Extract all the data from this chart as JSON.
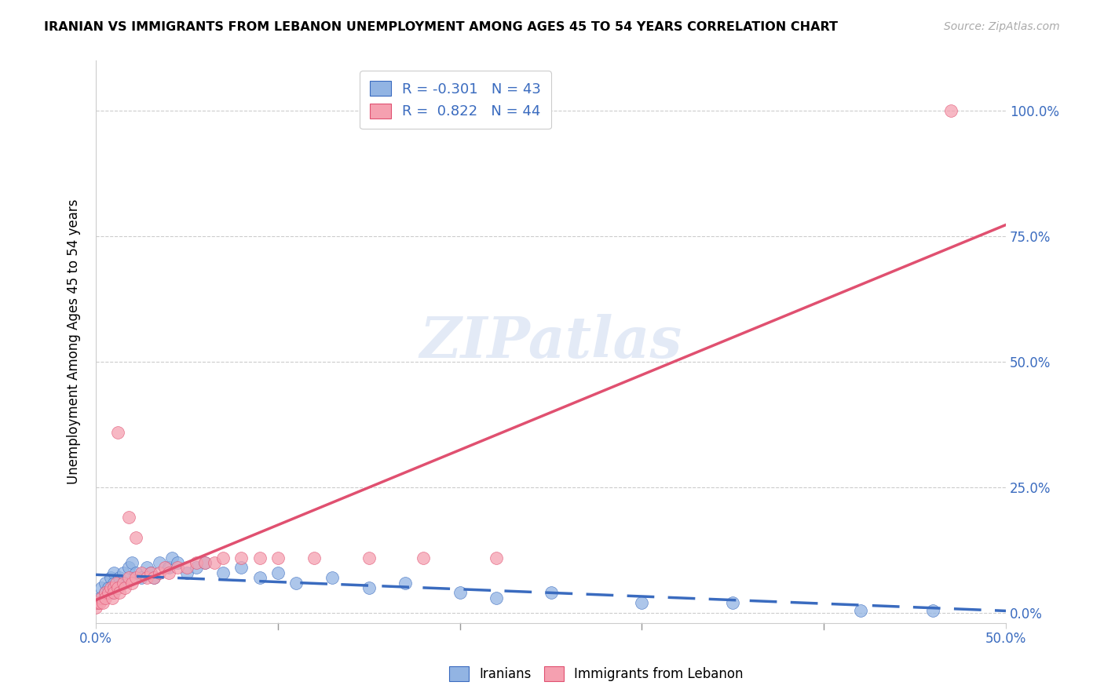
{
  "title": "IRANIAN VS IMMIGRANTS FROM LEBANON UNEMPLOYMENT AMONG AGES 45 TO 54 YEARS CORRELATION CHART",
  "source": "Source: ZipAtlas.com",
  "ylabel": "Unemployment Among Ages 45 to 54 years",
  "xlim": [
    0.0,
    0.5
  ],
  "ylim": [
    -0.02,
    1.1
  ],
  "right_yticklabels": [
    "0.0%",
    "25.0%",
    "50.0%",
    "75.0%",
    "100.0%"
  ],
  "legend_iranians_R": "-0.301",
  "legend_iranians_N": "43",
  "legend_lebanon_R": "0.822",
  "legend_lebanon_N": "44",
  "blue_color": "#92b4e3",
  "pink_color": "#f5a0b0",
  "blue_line_color": "#3a6bbf",
  "pink_line_color": "#e05070",
  "watermark": "ZIPatlas",
  "iranians_x": [
    0.0,
    0.002,
    0.003,
    0.005,
    0.005,
    0.007,
    0.008,
    0.009,
    0.01,
    0.01,
    0.012,
    0.013,
    0.015,
    0.015,
    0.018,
    0.02,
    0.022,
    0.025,
    0.028,
    0.03,
    0.032,
    0.035,
    0.04,
    0.042,
    0.045,
    0.05,
    0.055,
    0.06,
    0.07,
    0.08,
    0.09,
    0.1,
    0.11,
    0.13,
    0.15,
    0.17,
    0.2,
    0.22,
    0.25,
    0.3,
    0.35,
    0.42,
    0.46
  ],
  "iranians_y": [
    0.02,
    0.03,
    0.05,
    0.04,
    0.06,
    0.05,
    0.07,
    0.04,
    0.08,
    0.06,
    0.05,
    0.07,
    0.06,
    0.08,
    0.09,
    0.1,
    0.08,
    0.07,
    0.09,
    0.08,
    0.07,
    0.1,
    0.09,
    0.11,
    0.1,
    0.08,
    0.09,
    0.1,
    0.08,
    0.09,
    0.07,
    0.08,
    0.06,
    0.07,
    0.05,
    0.06,
    0.04,
    0.03,
    0.04,
    0.02,
    0.02,
    0.005,
    0.005
  ],
  "lebanon_x": [
    0.0,
    0.001,
    0.002,
    0.003,
    0.004,
    0.005,
    0.005,
    0.007,
    0.008,
    0.009,
    0.01,
    0.01,
    0.011,
    0.012,
    0.013,
    0.015,
    0.016,
    0.018,
    0.02,
    0.022,
    0.025,
    0.028,
    0.03,
    0.032,
    0.035,
    0.038,
    0.04,
    0.045,
    0.05,
    0.055,
    0.06,
    0.065,
    0.07,
    0.08,
    0.09,
    0.1,
    0.12,
    0.15,
    0.18,
    0.22,
    0.012,
    0.018,
    0.022,
    0.47
  ],
  "lebanon_y": [
    0.01,
    0.02,
    0.02,
    0.03,
    0.02,
    0.04,
    0.03,
    0.04,
    0.05,
    0.03,
    0.05,
    0.04,
    0.06,
    0.05,
    0.04,
    0.06,
    0.05,
    0.07,
    0.06,
    0.07,
    0.08,
    0.07,
    0.08,
    0.07,
    0.08,
    0.09,
    0.08,
    0.09,
    0.09,
    0.1,
    0.1,
    0.1,
    0.11,
    0.11,
    0.11,
    0.11,
    0.11,
    0.11,
    0.11,
    0.11,
    0.36,
    0.19,
    0.15,
    1.0
  ]
}
